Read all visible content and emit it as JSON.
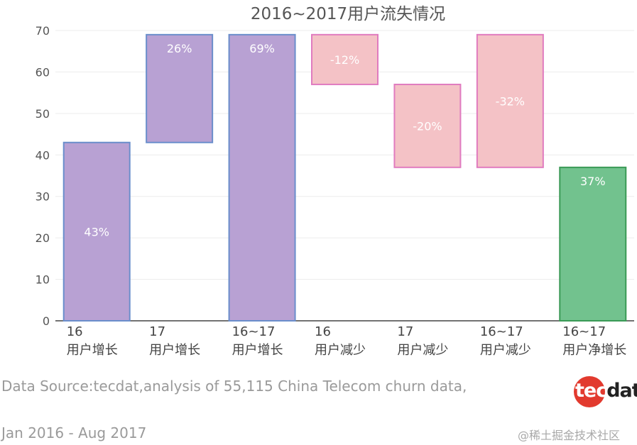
{
  "chart_data": {
    "type": "bar",
    "subtype": "waterfall",
    "title": "2016~2017用户流失情况",
    "xlabel": "",
    "ylabel": "",
    "ylim": [
      0,
      70
    ],
    "yticks": [
      0,
      10,
      20,
      30,
      40,
      50,
      60,
      70
    ],
    "grid": true,
    "categories": [
      [
        "16",
        "用户增长"
      ],
      [
        "17",
        "用户增长"
      ],
      [
        "16~17",
        "用户增长"
      ],
      [
        "16",
        "用户减少"
      ],
      [
        "17",
        "用户减少"
      ],
      [
        "16~17",
        "用户减少"
      ],
      [
        "16~17",
        "用户净增长"
      ]
    ],
    "bars": [
      {
        "base": 0,
        "top": 43,
        "label": "43%",
        "kind": "increase"
      },
      {
        "base": 43,
        "top": 69,
        "label": "26%",
        "kind": "increase"
      },
      {
        "base": 0,
        "top": 69,
        "label": "69%",
        "kind": "increase"
      },
      {
        "base": 57,
        "top": 69,
        "label": "-12%",
        "kind": "decrease"
      },
      {
        "base": 37,
        "top": 57,
        "label": "-20%",
        "kind": "decrease"
      },
      {
        "base": 37,
        "top": 69,
        "label": "-32%",
        "kind": "decrease"
      },
      {
        "base": 0,
        "top": 37,
        "label": "37%",
        "kind": "net"
      }
    ],
    "colors": {
      "increase_fill": "#b8a1d3",
      "increase_stroke": "#6a8ecb",
      "decrease_fill": "#f4c2c6",
      "decrease_stroke": "#e07bbf",
      "net_fill": "#72c28e",
      "net_stroke": "#3a9a56"
    }
  },
  "footer": {
    "source_line1": "Data Source:tecdat,analysis of 55,115 China Telecom churn data,",
    "source_line2": "Jan 2016 - Aug 2017"
  },
  "logo": {
    "part1": "tec",
    "part2": "dat"
  },
  "watermark": "@稀土掘金技术社区"
}
